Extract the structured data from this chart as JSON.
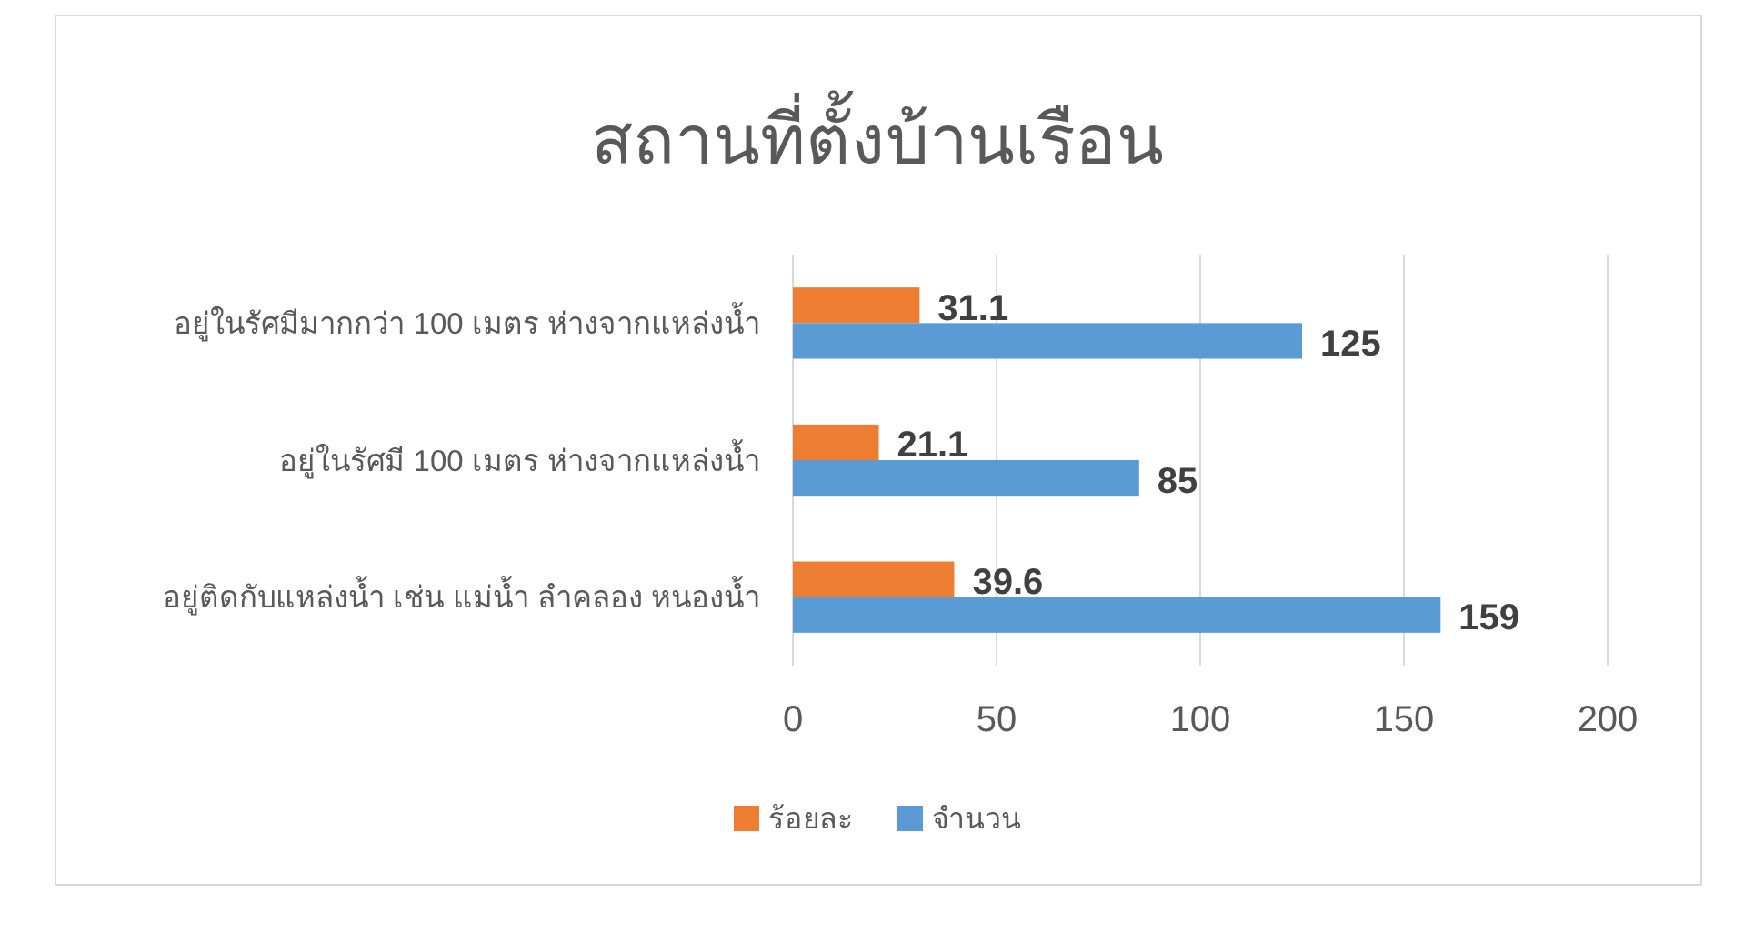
{
  "chart_data": {
    "type": "bar",
    "orientation": "horizontal",
    "title": "สถานที่ตั้งบ้านเรือน",
    "categories": [
      "อยู่ในรัศมีมากกว่า 100 เมตร ห่างจากแหล่งน้ำ",
      "อยู่ในรัศมี 100 เมตร ห่างจากแหล่งน้ำ",
      "อยู่ติดกับแหล่งน้ำ เช่น แม่น้ำ ลำคลอง หนองน้ำ"
    ],
    "series": [
      {
        "name": "ร้อยละ",
        "color": "#ed7d31",
        "values": [
          31.1,
          21.1,
          39.6
        ]
      },
      {
        "name": "จำนวน",
        "color": "#5b9bd5",
        "values": [
          125,
          85,
          159
        ]
      }
    ],
    "xlim": [
      0,
      200
    ],
    "xticks": [
      0,
      50,
      100,
      150,
      200
    ],
    "grid": "x",
    "legend": "bottom",
    "data_labels": true
  }
}
